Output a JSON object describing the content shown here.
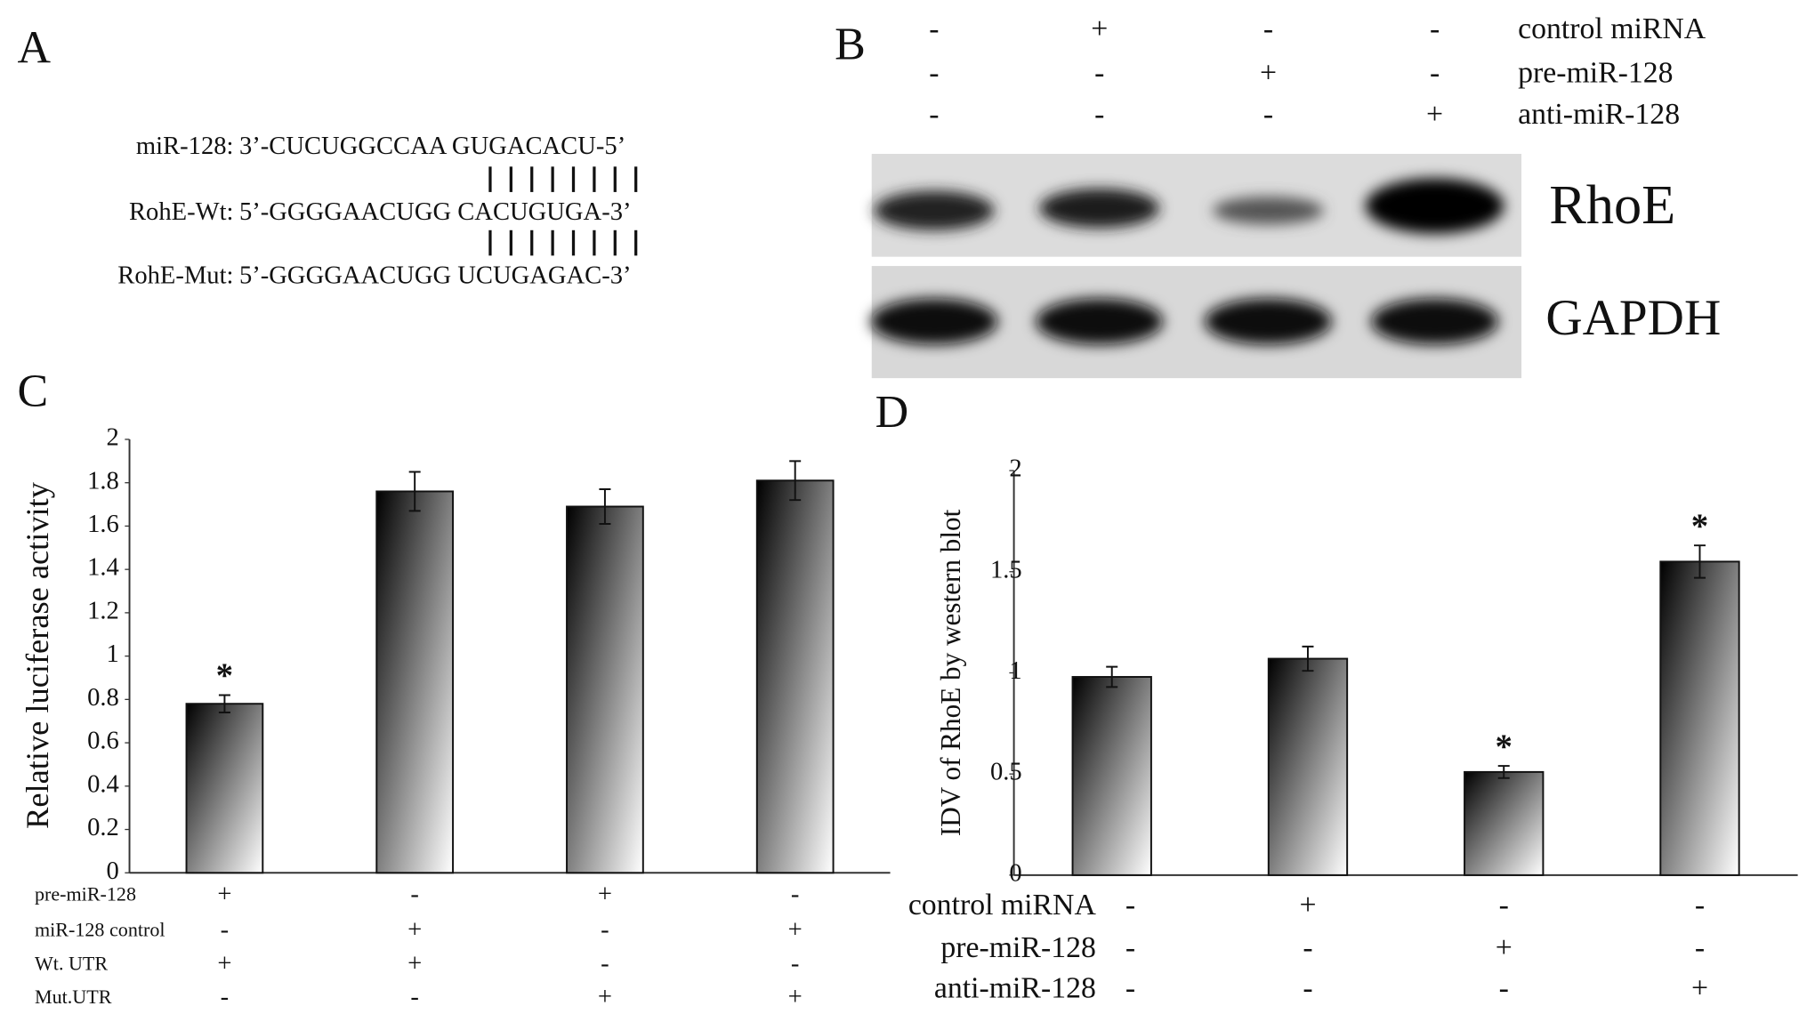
{
  "panel_a": {
    "label": "A",
    "lines": [
      {
        "name": "miR-128:",
        "seq": "3’-CUCUGGCCAA GUGACACU-5’"
      },
      {
        "name": "RohE-Wt:",
        "seq": "5’-GGGGAACUGG CACUGUGA-3’"
      },
      {
        "name": "RohE-Mut:",
        "seq": "5’-GGGGAACUGG UCUGAGAC-3’"
      }
    ]
  },
  "panel_b": {
    "label": "B",
    "conditions": [
      {
        "name": "control miRNA",
        "signs": [
          "-",
          "+",
          "-",
          "-"
        ]
      },
      {
        "name": "pre-miR-128",
        "signs": [
          "-",
          "-",
          "+",
          "-"
        ]
      },
      {
        "name": "anti-miR-128",
        "signs": [
          "-",
          "-",
          "-",
          "+"
        ]
      }
    ],
    "blots": [
      "RhoE",
      "GAPDH"
    ]
  },
  "chart_data": [
    {
      "type": "bar",
      "panel_label": "C",
      "y_label": "Relative luciferase activity",
      "categories": [
        null,
        null,
        null,
        null
      ],
      "values": [
        0.78,
        1.76,
        1.69,
        1.81
      ],
      "errors": [
        0.04,
        0.09,
        0.08,
        0.09
      ],
      "significance": [
        "*",
        null,
        null,
        null
      ],
      "ylim": [
        0,
        2
      ],
      "yticks": [
        0,
        0.2,
        0.4,
        0.6,
        0.8,
        1,
        1.2,
        1.4,
        1.6,
        1.8,
        2
      ],
      "conditions": [
        {
          "name": "pre-miR-128",
          "signs": [
            "+",
            "-",
            "+",
            "-"
          ]
        },
        {
          "name": "miR-128 control",
          "signs": [
            "-",
            "+",
            "-",
            "+"
          ]
        },
        {
          "name": "Wt. UTR",
          "signs": [
            "+",
            "+",
            "-",
            "-"
          ]
        },
        {
          "name": "Mut.UTR",
          "signs": [
            "-",
            "-",
            "+",
            "+"
          ]
        }
      ]
    },
    {
      "type": "bar",
      "panel_label": "D",
      "y_label": "IDV of RhoE by western blot",
      "categories": [
        null,
        null,
        null,
        null
      ],
      "values": [
        0.98,
        1.07,
        0.51,
        1.55
      ],
      "errors": [
        0.05,
        0.06,
        0.03,
        0.08
      ],
      "significance": [
        null,
        null,
        "*",
        "*"
      ],
      "ylim": [
        0,
        2
      ],
      "yticks": [
        0,
        0.5,
        1,
        1.5,
        2
      ],
      "conditions": [
        {
          "name": "control miRNA",
          "signs": [
            "-",
            "+",
            "-",
            "-"
          ]
        },
        {
          "name": "pre-miR-128",
          "signs": [
            "-",
            "-",
            "+",
            "-"
          ]
        },
        {
          "name": "anti-miR-128",
          "signs": [
            "-",
            "-",
            "-",
            "+"
          ]
        }
      ]
    }
  ]
}
